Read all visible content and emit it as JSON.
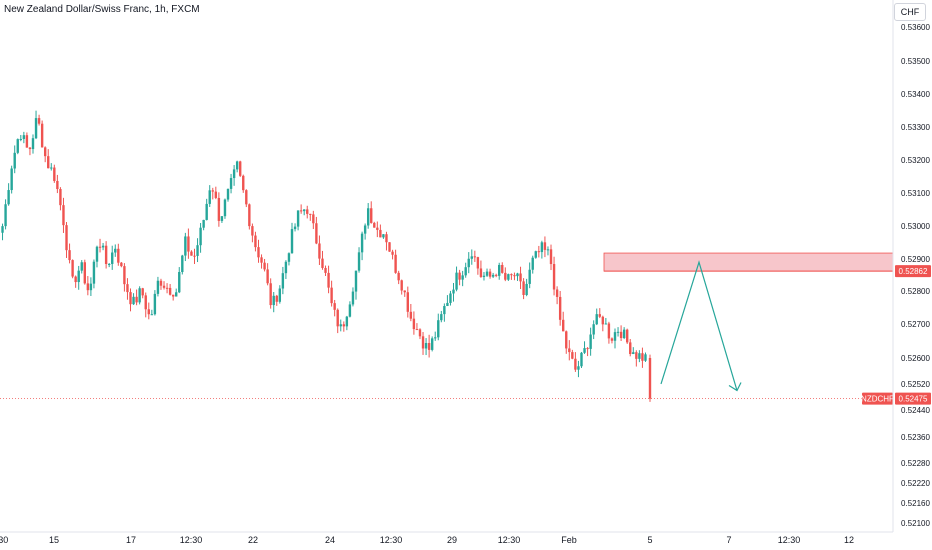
{
  "header": {
    "title": "New Zealand Dollar/Swiss Franc, 1h, FXCM",
    "currency_button": "CHF"
  },
  "colors": {
    "up": "#26a69a",
    "down": "#ef5350",
    "zone_fill": "#f7c6cb",
    "zone_line": "#ef5350",
    "arrow": "#26a69a",
    "price_line": "#ef5350"
  },
  "chart_data": {
    "type": "candlestick",
    "title": "New Zealand Dollar/Swiss Franc, 1h, FXCM",
    "ylim": [
      0.521,
      0.536
    ],
    "y_ticks": [
      0.536,
      0.535,
      0.534,
      0.533,
      0.532,
      0.531,
      0.53,
      0.529,
      0.528,
      0.527,
      0.526,
      0.5252,
      0.5244,
      0.5236,
      0.5228,
      0.5222,
      0.5216,
      0.521
    ],
    "y_tick_labels": [
      "0.53600",
      "0.53500",
      "0.53400",
      "0.53300",
      "0.53200",
      "0.53100",
      "0.53000",
      "0.52900",
      "0.52800",
      "0.52700",
      "0.52600",
      "0.52520",
      "0.52440",
      "0.52360",
      "0.52280",
      "0.52220",
      "0.52160",
      "0.52100"
    ],
    "x_ticks": [
      ":30",
      "15",
      "17",
      "12:30",
      "22",
      "24",
      "12:30",
      "29",
      "12:30",
      "Feb",
      "5",
      "7",
      "12:30",
      "12"
    ],
    "price_series": [
      0.53,
      0.5318,
      0.5329,
      0.5322,
      0.5333,
      0.532,
      0.5315,
      0.5302,
      0.5282,
      0.5288,
      0.5279,
      0.5297,
      0.5288,
      0.5294,
      0.5283,
      0.5276,
      0.528,
      0.5271,
      0.5284,
      0.5281,
      0.528,
      0.5295,
      0.529,
      0.53,
      0.5314,
      0.5302,
      0.531,
      0.5318,
      0.5307,
      0.5295,
      0.5288,
      0.5275,
      0.5282,
      0.5294,
      0.5303,
      0.5306,
      0.5297,
      0.5287,
      0.5274,
      0.5268,
      0.5278,
      0.529,
      0.5306,
      0.5299,
      0.5298,
      0.5289,
      0.5282,
      0.5272,
      0.5267,
      0.5262,
      0.5268,
      0.5276,
      0.5283,
      0.5287,
      0.5293,
      0.5285,
      0.5284,
      0.5287,
      0.5283,
      0.5285,
      0.5279,
      0.5289,
      0.5293,
      0.5291,
      0.5273,
      0.5262,
      0.5256,
      0.5262,
      0.527,
      0.5272,
      0.5266,
      0.5269,
      0.5264,
      0.5261,
      0.526
    ],
    "last_candle": {
      "open": 0.526,
      "close": 0.52475,
      "high": 0.5261,
      "low": 0.52465
    },
    "resistance_zone": {
      "low": 0.52862,
      "high": 0.52918
    },
    "last_price": 0.52475,
    "price_labels": {
      "zone": "0.52862",
      "symbol": "NZDCHF",
      "last": "0.52475"
    },
    "projection": [
      {
        "time": "~5",
        "price": 0.5252
      },
      {
        "time": "~6",
        "price": 0.5289
      },
      {
        "time": "~7",
        "price": 0.525
      }
    ]
  }
}
